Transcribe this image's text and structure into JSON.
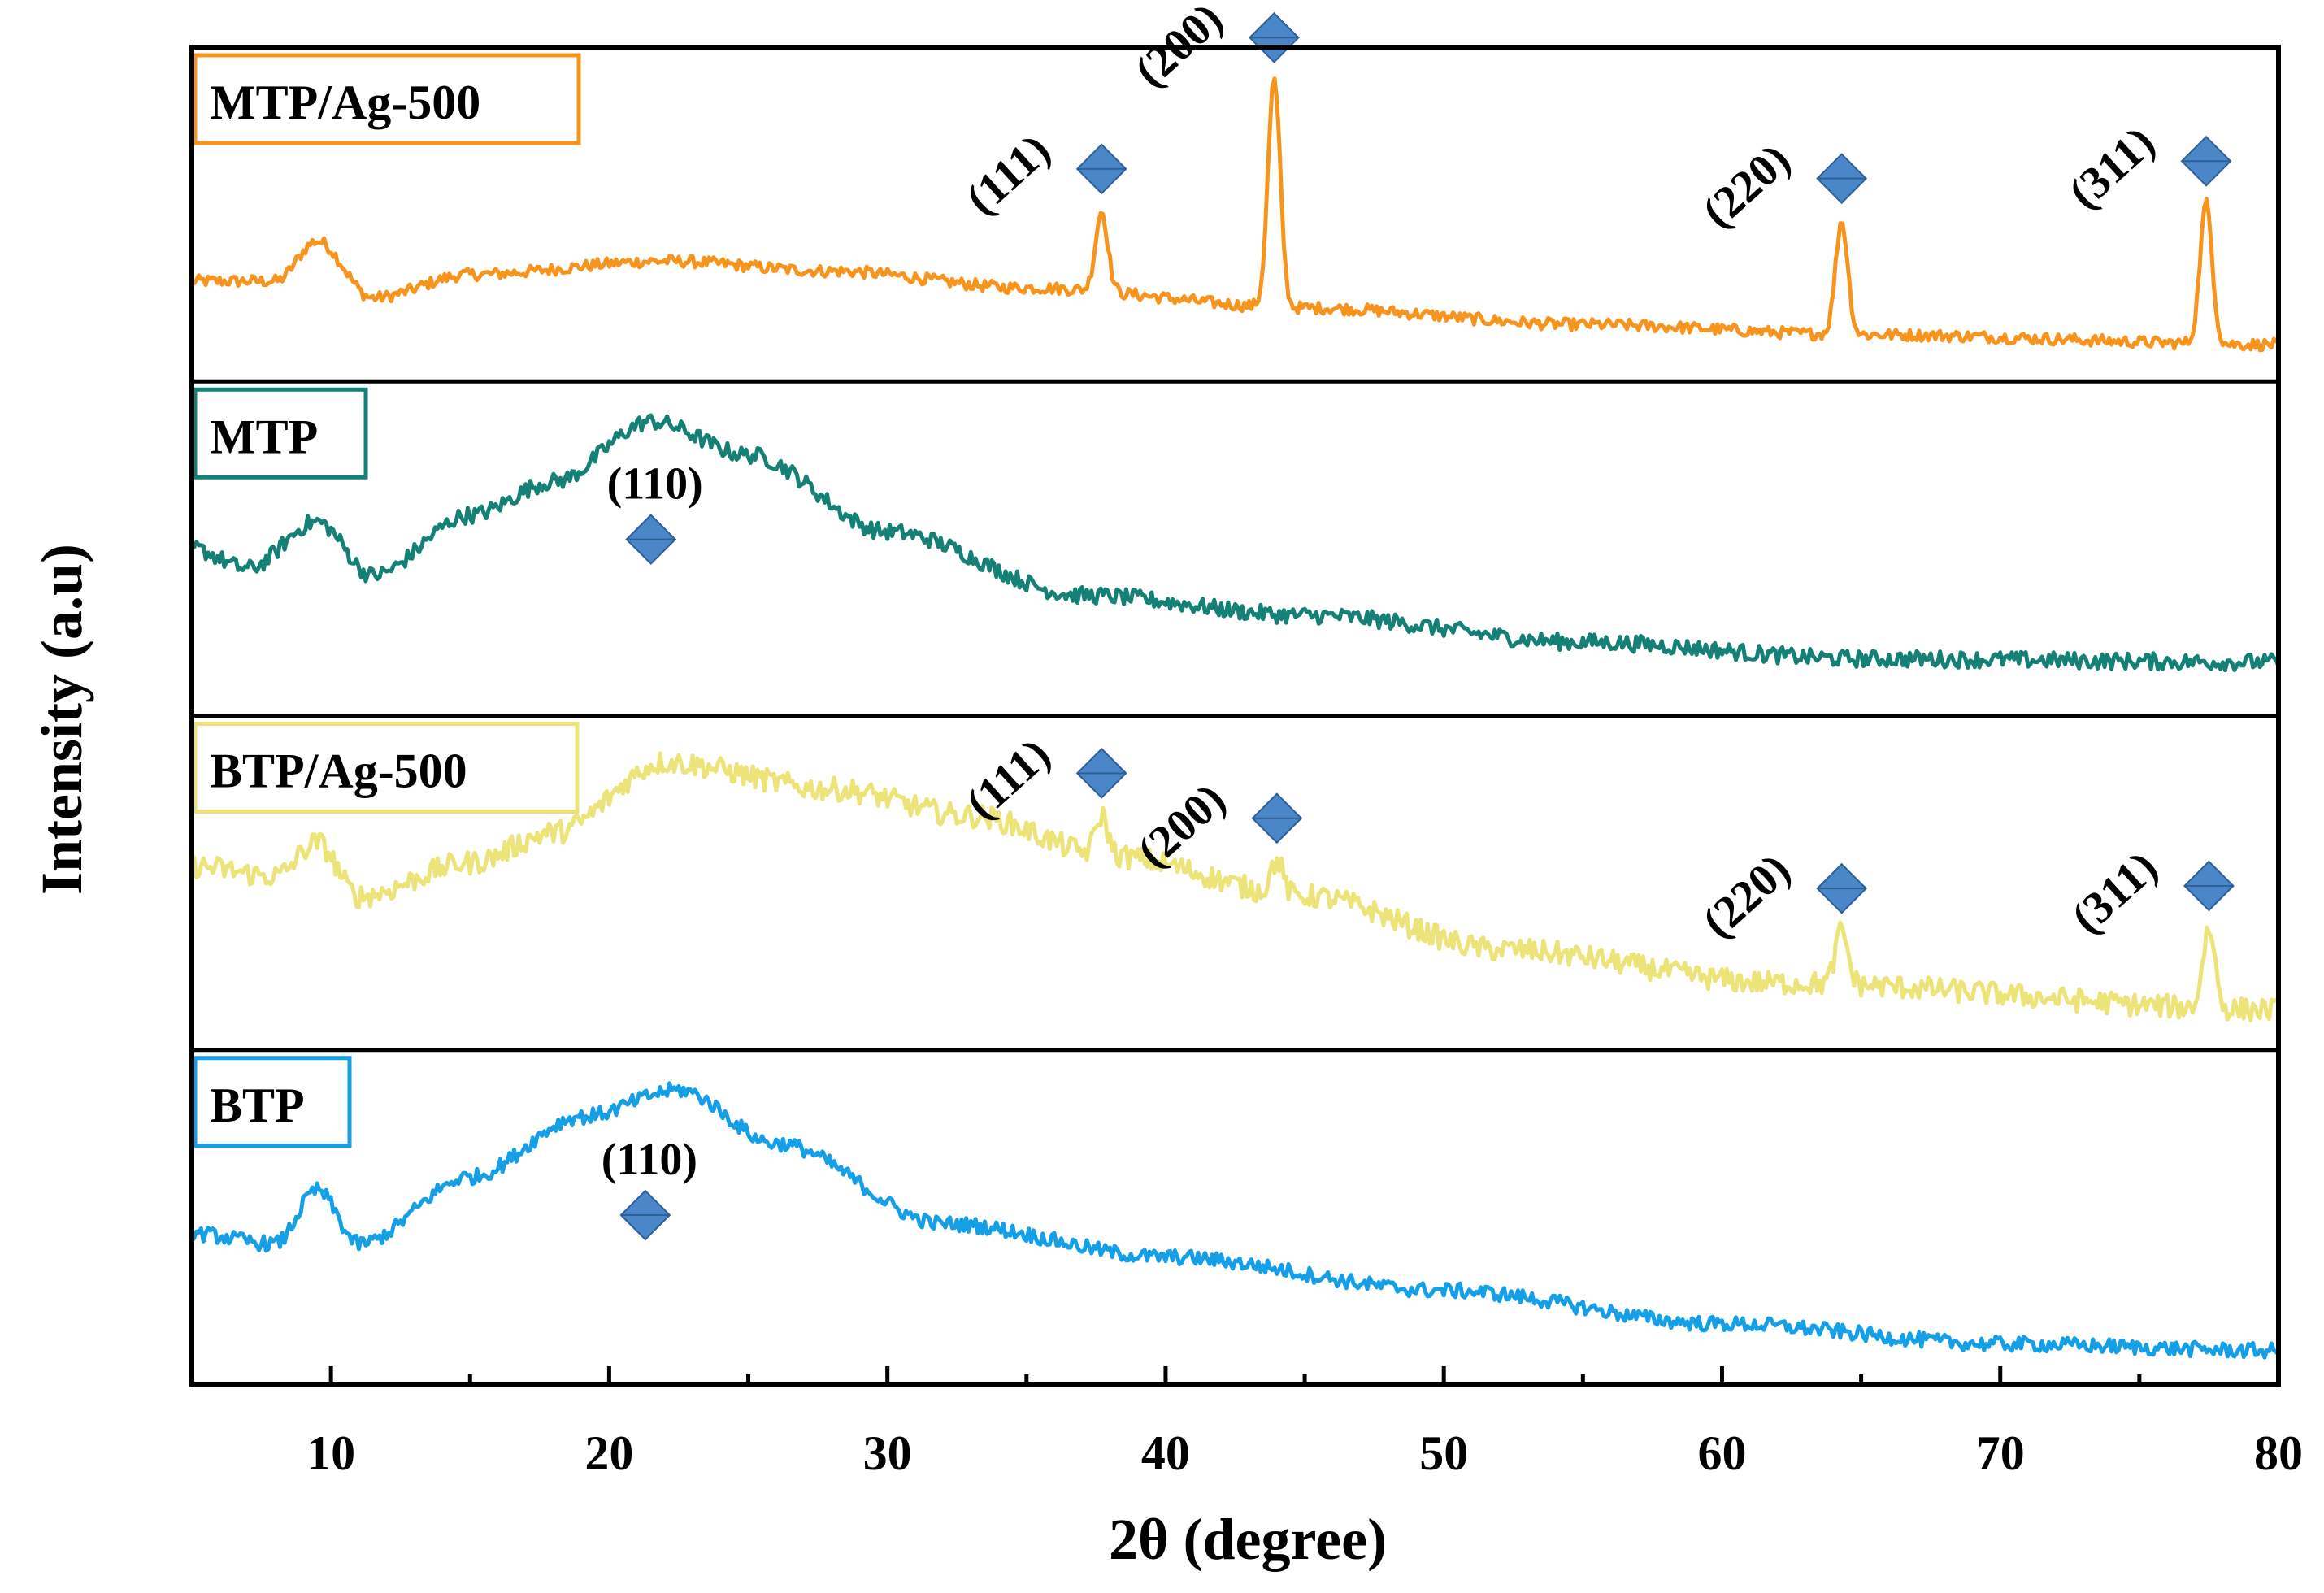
{
  "chart_data": {
    "type": "line",
    "title": "",
    "xlabel": "2θ (degree)",
    "ylabel": "Intensity (a.u)",
    "xlim": [
      5,
      80
    ],
    "xticks": [
      10,
      20,
      30,
      40,
      50,
      60,
      70,
      80
    ],
    "marker_color": "#4a86c8",
    "series": [
      {
        "name": "MTP/Ag-500",
        "color": "#f7941d",
        "baseline": [
          [
            5,
            0.3
          ],
          [
            8,
            0.3
          ],
          [
            9.5,
            0.42
          ],
          [
            11.5,
            0.25
          ],
          [
            15,
            0.32
          ],
          [
            22,
            0.36
          ],
          [
            28,
            0.33
          ],
          [
            35,
            0.28
          ],
          [
            45,
            0.22
          ],
          [
            55,
            0.17
          ],
          [
            65,
            0.14
          ],
          [
            80,
            0.11
          ]
        ],
        "peaks": [
          {
            "x": 37.7,
            "height": 0.24,
            "label": "(111)"
          },
          {
            "x": 43.9,
            "height": 0.68,
            "label": "(200)"
          },
          {
            "x": 64.3,
            "height": 0.34,
            "label": "(220)"
          },
          {
            "x": 77.4,
            "height": 0.42,
            "label": "(311)"
          }
        ]
      },
      {
        "name": "MTP",
        "color": "#158076",
        "baseline": [
          [
            5,
            0.5
          ],
          [
            7,
            0.44
          ],
          [
            9.5,
            0.58
          ],
          [
            11.5,
            0.42
          ],
          [
            15,
            0.6
          ],
          [
            18,
            0.7
          ],
          [
            21.5,
            0.88
          ],
          [
            25,
            0.78
          ],
          [
            30,
            0.55
          ],
          [
            37,
            0.36
          ],
          [
            45,
            0.3
          ],
          [
            55,
            0.22
          ],
          [
            65,
            0.17
          ],
          [
            80,
            0.16
          ]
        ],
        "peaks": [
          {
            "x": 21.5,
            "height": 0,
            "label": "(110)"
          }
        ]
      },
      {
        "name": "BTP/Ag-500",
        "color": "#ece479",
        "baseline": [
          [
            5,
            0.55
          ],
          [
            8,
            0.52
          ],
          [
            9.5,
            0.62
          ],
          [
            11,
            0.46
          ],
          [
            15,
            0.56
          ],
          [
            18,
            0.65
          ],
          [
            22,
            0.86
          ],
          [
            28,
            0.78
          ],
          [
            33,
            0.7
          ],
          [
            38,
            0.58
          ],
          [
            45,
            0.46
          ],
          [
            52,
            0.3
          ],
          [
            62,
            0.2
          ],
          [
            80,
            0.12
          ]
        ],
        "peaks": [
          {
            "x": 37.7,
            "height": 0.12,
            "label": "(111)"
          },
          {
            "x": 44.0,
            "height": 0.1,
            "label": "(200)"
          },
          {
            "x": 64.3,
            "height": 0.16,
            "label": "(220)"
          },
          {
            "x": 77.5,
            "height": 0.24,
            "label": "(311)"
          }
        ]
      },
      {
        "name": "BTP",
        "color": "#149fe6",
        "baseline": [
          [
            5,
            0.45
          ],
          [
            8,
            0.42
          ],
          [
            9.5,
            0.58
          ],
          [
            11,
            0.42
          ],
          [
            15,
            0.62
          ],
          [
            19,
            0.8
          ],
          [
            22.5,
            0.88
          ],
          [
            26,
            0.72
          ],
          [
            32,
            0.48
          ],
          [
            40,
            0.38
          ],
          [
            50,
            0.28
          ],
          [
            60,
            0.18
          ],
          [
            70,
            0.12
          ],
          [
            80,
            0.1
          ]
        ],
        "peaks": [
          {
            "x": 21.3,
            "height": 0,
            "label": "(110)"
          }
        ]
      }
    ]
  }
}
